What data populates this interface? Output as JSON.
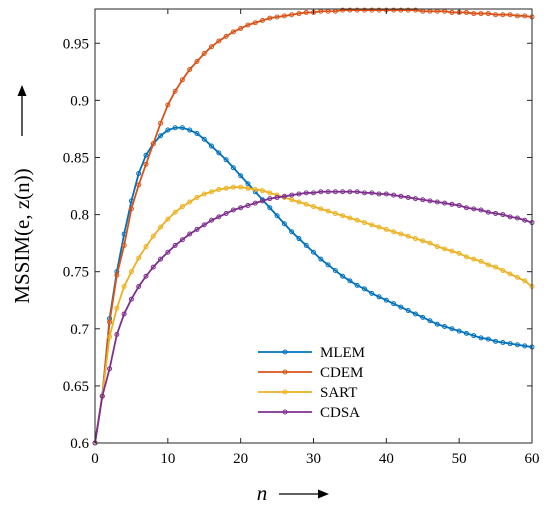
{
  "chart_data": {
    "type": "line",
    "xlabel": "n",
    "ylabel": "MSSIM(e, z(n))",
    "xlim": [
      0,
      60
    ],
    "ylim": [
      0.6,
      0.98
    ],
    "xticks": [
      0,
      10,
      20,
      30,
      40,
      50,
      60
    ],
    "yticks": [
      0.6,
      0.65,
      0.7,
      0.75,
      0.8,
      0.85,
      0.9,
      0.95
    ],
    "grid": false,
    "legend_position": "bottom-center",
    "x": [
      0,
      1,
      2,
      3,
      4,
      5,
      6,
      7,
      8,
      9,
      10,
      11,
      12,
      13,
      14,
      15,
      16,
      17,
      18,
      19,
      20,
      21,
      22,
      23,
      24,
      25,
      26,
      27,
      28,
      29,
      30,
      31,
      32,
      33,
      34,
      35,
      36,
      37,
      38,
      39,
      40,
      41,
      42,
      43,
      44,
      45,
      46,
      47,
      48,
      49,
      50,
      51,
      52,
      53,
      54,
      55,
      56,
      57,
      58,
      59,
      60
    ],
    "series": [
      {
        "name": "MLEM",
        "color": "#0072BD",
        "values": [
          0.6,
          0.641,
          0.709,
          0.75,
          0.783,
          0.812,
          0.836,
          0.852,
          0.862,
          0.869,
          0.874,
          0.876,
          0.876,
          0.874,
          0.871,
          0.866,
          0.86,
          0.854,
          0.848,
          0.841,
          0.834,
          0.827,
          0.82,
          0.813,
          0.806,
          0.799,
          0.792,
          0.785,
          0.779,
          0.773,
          0.767,
          0.761,
          0.756,
          0.751,
          0.746,
          0.742,
          0.738,
          0.735,
          0.731,
          0.728,
          0.725,
          0.722,
          0.719,
          0.716,
          0.713,
          0.71,
          0.707,
          0.704,
          0.702,
          0.7,
          0.698,
          0.696,
          0.694,
          0.692,
          0.691,
          0.689,
          0.688,
          0.687,
          0.686,
          0.685,
          0.684
        ]
      },
      {
        "name": "CDEM",
        "color": "#D95319",
        "values": [
          0.6,
          0.641,
          0.706,
          0.747,
          0.773,
          0.805,
          0.826,
          0.844,
          0.862,
          0.88,
          0.896,
          0.908,
          0.918,
          0.927,
          0.934,
          0.941,
          0.947,
          0.952,
          0.956,
          0.96,
          0.963,
          0.966,
          0.968,
          0.97,
          0.972,
          0.973,
          0.974,
          0.975,
          0.976,
          0.977,
          0.977,
          0.978,
          0.978,
          0.978,
          0.979,
          0.979,
          0.979,
          0.979,
          0.979,
          0.979,
          0.979,
          0.979,
          0.979,
          0.979,
          0.979,
          0.978,
          0.978,
          0.978,
          0.978,
          0.977,
          0.977,
          0.977,
          0.976,
          0.976,
          0.976,
          0.975,
          0.975,
          0.975,
          0.974,
          0.974,
          0.973
        ]
      },
      {
        "name": "SART",
        "color": "#EDB120",
        "values": [
          0.6,
          0.641,
          0.693,
          0.718,
          0.737,
          0.75,
          0.762,
          0.772,
          0.781,
          0.789,
          0.796,
          0.802,
          0.807,
          0.811,
          0.815,
          0.818,
          0.82,
          0.822,
          0.823,
          0.824,
          0.824,
          0.823,
          0.822,
          0.821,
          0.819,
          0.817,
          0.815,
          0.813,
          0.811,
          0.809,
          0.807,
          0.805,
          0.803,
          0.801,
          0.799,
          0.797,
          0.795,
          0.793,
          0.791,
          0.789,
          0.787,
          0.785,
          0.783,
          0.781,
          0.779,
          0.777,
          0.775,
          0.772,
          0.77,
          0.768,
          0.766,
          0.763,
          0.761,
          0.759,
          0.756,
          0.754,
          0.751,
          0.748,
          0.745,
          0.742,
          0.737
        ]
      },
      {
        "name": "CDSA",
        "color": "#7E2F8E",
        "values": [
          0.6,
          0.641,
          0.665,
          0.695,
          0.713,
          0.726,
          0.737,
          0.746,
          0.754,
          0.761,
          0.767,
          0.773,
          0.778,
          0.783,
          0.787,
          0.791,
          0.795,
          0.798,
          0.801,
          0.804,
          0.806,
          0.808,
          0.81,
          0.812,
          0.814,
          0.815,
          0.816,
          0.817,
          0.818,
          0.819,
          0.819,
          0.82,
          0.82,
          0.82,
          0.82,
          0.82,
          0.82,
          0.819,
          0.819,
          0.818,
          0.818,
          0.817,
          0.816,
          0.815,
          0.814,
          0.813,
          0.812,
          0.811,
          0.81,
          0.809,
          0.808,
          0.806,
          0.805,
          0.804,
          0.802,
          0.801,
          0.8,
          0.798,
          0.797,
          0.795,
          0.793
        ]
      }
    ]
  }
}
